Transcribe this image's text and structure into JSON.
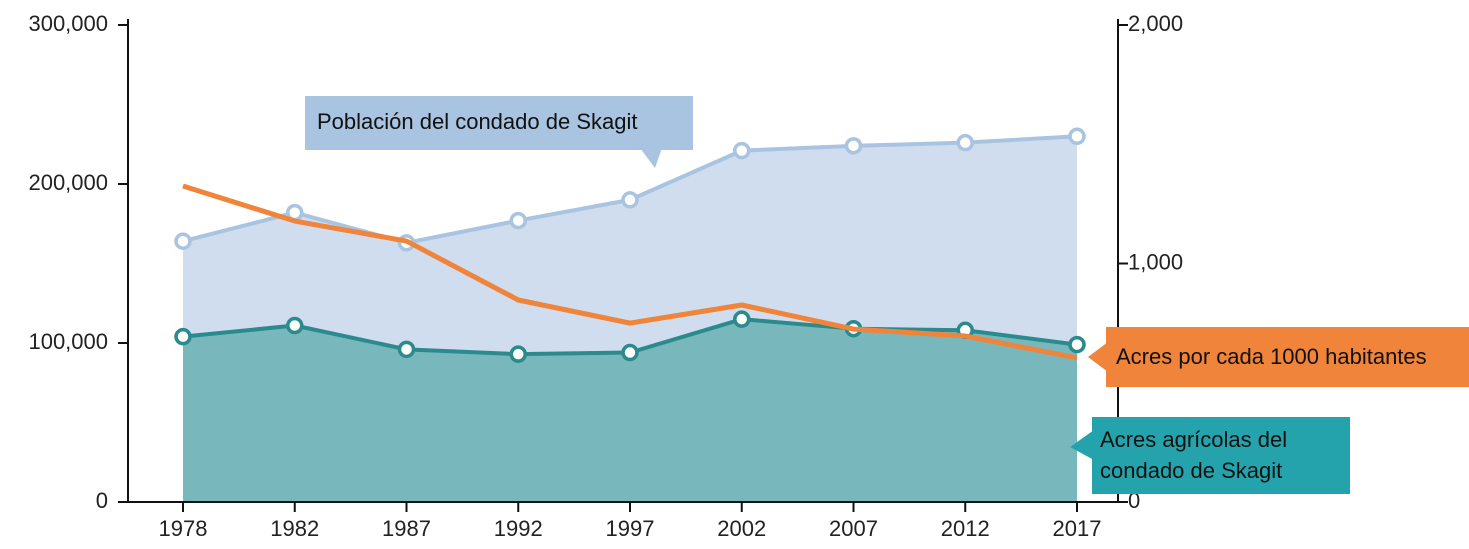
{
  "chart_data": {
    "type": "line",
    "categories": [
      "1978",
      "1982",
      "1987",
      "1992",
      "1997",
      "2002",
      "2007",
      "2012",
      "2017"
    ],
    "ylim": [
      0,
      300000
    ],
    "yticks": [
      {
        "value": 0,
        "label": "0"
      },
      {
        "value": 100000,
        "label": "100,000"
      },
      {
        "value": 200000,
        "label": "200,000"
      },
      {
        "value": 300000,
        "label": "300,000"
      }
    ],
    "y2lim": [
      0,
      2000
    ],
    "y2ticks": [
      {
        "value": 0,
        "label": "0"
      },
      {
        "value": 1000,
        "label": "1,000"
      },
      {
        "value": 2000,
        "label": "2,000"
      }
    ],
    "series": [
      {
        "name": "Población del condado de Skagit",
        "color": "#a9c4e0",
        "fill": "#cfddef",
        "area": true,
        "markers": true,
        "values": [
          164000,
          182000,
          163000,
          177000,
          190000,
          221000,
          224000,
          226000,
          230000
        ]
      },
      {
        "name": "Acres agrícolas del condado de Skagit",
        "color": "#2a8a8c",
        "fill": "#78b8bc",
        "area": true,
        "markers": true,
        "values": [
          104000,
          111000,
          96000,
          93000,
          94000,
          115000,
          109000,
          108000,
          99000
        ]
      },
      {
        "name": "Acres por cada 1000 habitantes",
        "color": "#f0843a",
        "area": false,
        "markers": false,
        "axis": "y2",
        "values": [
          1325,
          1178,
          1094,
          847,
          750,
          826,
          725,
          696,
          604
        ]
      }
    ]
  }
}
